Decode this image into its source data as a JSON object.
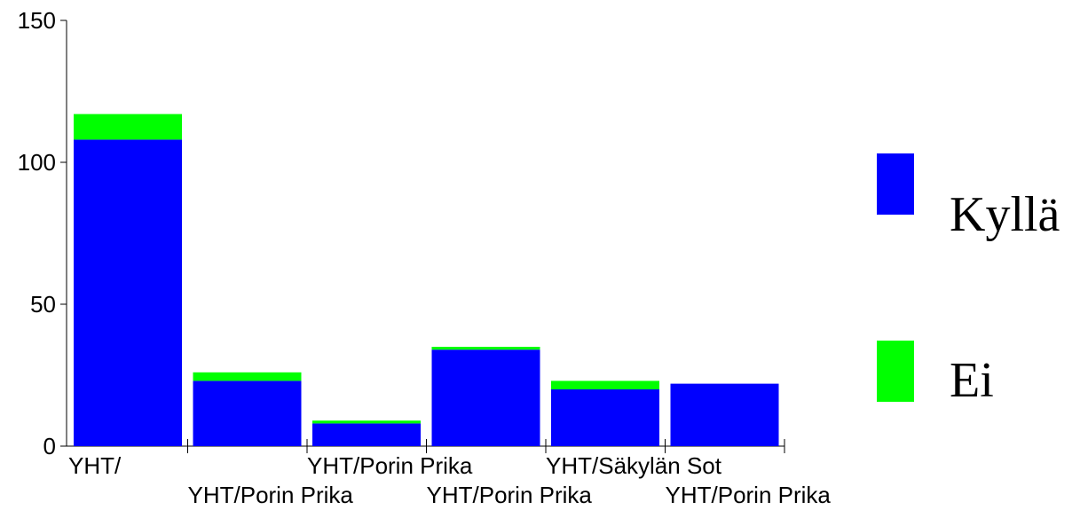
{
  "chart_data": {
    "type": "bar",
    "stacked": true,
    "categories": [
      "YHT/",
      "YHT/Porin Prika",
      "YHT/Porin Prika",
      "YHT/Porin Prika",
      "YHT/Säkylän Sot",
      "YHT/Porin Prika"
    ],
    "series": [
      {
        "name": "Kyllä",
        "color": "#0000ff",
        "values": [
          108,
          23,
          8,
          34,
          20,
          22
        ]
      },
      {
        "name": "Ei",
        "color": "#00ff00",
        "values": [
          9,
          3,
          1,
          1,
          3,
          0
        ]
      }
    ],
    "ylim": [
      0,
      150
    ],
    "yticks": [
      0,
      50,
      100,
      150
    ],
    "grid": false,
    "legend": "right"
  }
}
